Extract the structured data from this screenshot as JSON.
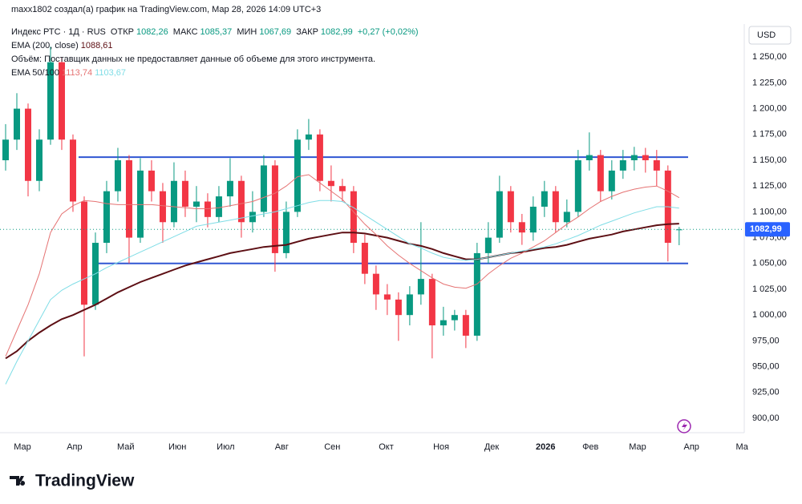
{
  "chart_data": {
    "type": "candlestick",
    "attribution": "maxx1802 создал(а) график на TradingView.com, Мар 28, 2026 14:09 UTC+3",
    "symbol": "Индекс РТС · 1Д · RUS",
    "ohlc_names": [
      "ОТКР",
      "МАКС",
      "МИН",
      "ЗАКР"
    ],
    "ohlc_labels": [
      "1082,26",
      "1085,37",
      "1067,69",
      "1082,99"
    ],
    "change_label": "+0,27 (+0,02%)",
    "volume_note": "Объём: Поставщик данных не предоставляет данные об объеме для этого инструмента.",
    "currency": "USD",
    "brand": "TradingView",
    "last_price_label": "1082,99",
    "up_color": "#089981",
    "down_color": "#f23645",
    "open": [
      1150,
      1170,
      1200,
      1130,
      1170,
      1245,
      1170,
      1110,
      1010,
      1070,
      1120,
      1150,
      1075,
      1140,
      1120,
      1090,
      1130,
      1105,
      1110,
      1095,
      1115,
      1130,
      1090,
      1100,
      1145,
      1060,
      1100,
      1170,
      1175,
      1130,
      1125,
      1120,
      1070,
      1040,
      1020,
      1015,
      1000,
      1020,
      1035,
      990,
      995,
      1000,
      980,
      1060,
      1075,
      1120,
      1090,
      1080,
      1105,
      1120,
      1090,
      1100,
      1150,
      1155,
      1120,
      1140,
      1150,
      1155,
      1150,
      1140,
      1082.26
    ],
    "high": [
      1185,
      1215,
      1205,
      1180,
      1260,
      1250,
      1175,
      1115,
      1080,
      1130,
      1162,
      1155,
      1152,
      1150,
      1128,
      1148,
      1140,
      1125,
      1118,
      1125,
      1152,
      1135,
      1120,
      1155,
      1150,
      1110,
      1180,
      1190,
      1180,
      1145,
      1132,
      1125,
      1078,
      1048,
      1030,
      1022,
      1028,
      1090,
      1040,
      1008,
      1005,
      1005,
      1070,
      1090,
      1135,
      1125,
      1098,
      1115,
      1130,
      1125,
      1112,
      1160,
      1177,
      1160,
      1150,
      1160,
      1163,
      1162,
      1160,
      1145,
      1085.37
    ],
    "low": [
      1140,
      1160,
      1115,
      1120,
      1165,
      1160,
      1100,
      960,
      1005,
      1060,
      1110,
      1050,
      1070,
      1110,
      1070,
      1085,
      1095,
      1090,
      1085,
      1090,
      1105,
      1075,
      1080,
      1095,
      1042,
      1055,
      1095,
      1160,
      1120,
      1110,
      1110,
      1060,
      1030,
      1005,
      1000,
      975,
      990,
      1010,
      958,
      980,
      985,
      968,
      975,
      1050,
      1070,
      1080,
      1068,
      1072,
      1095,
      1080,
      1085,
      1095,
      1140,
      1110,
      1112,
      1132,
      1140,
      1138,
      1125,
      1052,
      1067.69
    ],
    "close": [
      1170,
      1200,
      1130,
      1170,
      1245,
      1170,
      1110,
      1010,
      1070,
      1120,
      1150,
      1075,
      1140,
      1120,
      1090,
      1130,
      1105,
      1110,
      1095,
      1115,
      1130,
      1090,
      1100,
      1145,
      1060,
      1100,
      1170,
      1175,
      1130,
      1125,
      1120,
      1070,
      1040,
      1020,
      1015,
      1000,
      1020,
      1035,
      990,
      995,
      1000,
      980,
      1060,
      1075,
      1120,
      1090,
      1080,
      1105,
      1120,
      1090,
      1100,
      1150,
      1155,
      1120,
      1140,
      1150,
      1155,
      1150,
      1140,
      1070,
      1082.99
    ],
    "series": [
      {
        "name": "EMA (200, close)",
        "color": "#5d0f14",
        "value_label": "1088,61",
        "values": [
          958,
          965,
          975,
          983,
          990,
          996,
          1000,
          1005,
          1010,
          1016,
          1022,
          1027,
          1032,
          1036,
          1040,
          1044,
          1048,
          1051,
          1054,
          1057,
          1060,
          1062,
          1064,
          1066,
          1067,
          1068,
          1071,
          1074,
          1076,
          1078,
          1080,
          1080,
          1079,
          1077,
          1075,
          1072,
          1069,
          1067,
          1064,
          1060,
          1057,
          1054,
          1054,
          1056,
          1058,
          1060,
          1061,
          1063,
          1065,
          1066,
          1068,
          1071,
          1074,
          1076,
          1078,
          1081,
          1083,
          1085,
          1087,
          1088,
          1088.61
        ]
      },
      {
        "name": "EMA 50/100",
        "color": "#e57373",
        "value_label": "1113,74",
        "values": [
          960,
          985,
          1010,
          1040,
          1080,
          1098,
          1106,
          1111,
          1110,
          1108,
          1107,
          1107,
          1107,
          1107,
          1106,
          1105,
          1104,
          1103,
          1103,
          1104,
          1106,
          1108,
          1110,
          1114,
          1118,
          1125,
          1134,
          1136,
          1128,
          1120,
          1112,
          1100,
          1088,
          1078,
          1067,
          1058,
          1050,
          1043,
          1036,
          1030,
          1027,
          1026,
          1030,
          1040,
          1048,
          1055,
          1060,
          1066,
          1072,
          1080,
          1088,
          1095,
          1103,
          1110,
          1115,
          1119,
          1122,
          1124,
          1125,
          1120,
          1113.74
        ]
      },
      {
        "color": "#7fdde6",
        "value_label": "1103,67",
        "values": [
          933,
          955,
          975,
          995,
          1015,
          1024,
          1030,
          1035,
          1040,
          1046,
          1051,
          1056,
          1061,
          1066,
          1071,
          1076,
          1081,
          1086,
          1088,
          1090,
          1092,
          1094,
          1096,
          1098,
          1100,
          1103,
          1106,
          1109,
          1111,
          1111,
          1110,
          1104,
          1097,
          1090,
          1083,
          1076,
          1069,
          1065,
          1060,
          1056,
          1054,
          1053,
          1054,
          1056,
          1058,
          1060,
          1062,
          1064,
          1066,
          1069,
          1073,
          1077,
          1082,
          1087,
          1091,
          1095,
          1099,
          1102,
          1105,
          1105,
          1103.67
        ]
      }
    ],
    "levels": [
      {
        "value": 1153,
        "from": 7,
        "to": 61.3,
        "color": "#3056d3"
      },
      {
        "value": 1050,
        "from": 8.4,
        "to": 61.3,
        "color": "#3056d3"
      }
    ],
    "xlim": [
      0,
      66.3
    ],
    "xticks": [
      {
        "value": 2.0,
        "label": "Мар"
      },
      {
        "value": 6.64,
        "label": "Апр"
      },
      {
        "value": 11.2,
        "label": "Май"
      },
      {
        "value": 15.8,
        "label": "Июн"
      },
      {
        "value": 20.1,
        "label": "Июл"
      },
      {
        "value": 25.1,
        "label": "Авг"
      },
      {
        "value": 29.6,
        "label": "Сен"
      },
      {
        "value": 34.4,
        "label": "Окт"
      },
      {
        "value": 39.3,
        "label": "Ноя"
      },
      {
        "value": 43.8,
        "label": "Дек"
      },
      {
        "value": 48.6,
        "label": "2026"
      },
      {
        "value": 52.6,
        "label": "Фев"
      },
      {
        "value": 56.8,
        "label": "Мар"
      },
      {
        "value": 61.6,
        "label": "Апр"
      },
      {
        "value": 66.1,
        "label": "Ма"
      }
    ],
    "ylim": [
      886,
      1282
    ],
    "yticks": [
      {
        "value": 900,
        "label": "900,00"
      },
      {
        "value": 925,
        "label": "925,00"
      },
      {
        "value": 950,
        "label": "950,00"
      },
      {
        "value": 975,
        "label": "975,00"
      },
      {
        "value": 1000,
        "label": "1 000,00"
      },
      {
        "value": 1025,
        "label": "1 025,00"
      },
      {
        "value": 1050,
        "label": "1 050,00"
      },
      {
        "value": 1075,
        "label": "1 075,00"
      },
      {
        "value": 1100,
        "label": "1 100,00"
      },
      {
        "value": 1125,
        "label": "1 125,00"
      },
      {
        "value": 1150,
        "label": "1 150,00"
      },
      {
        "value": 1175,
        "label": "1 175,00"
      },
      {
        "value": 1200,
        "label": "1 200,00"
      },
      {
        "value": 1225,
        "label": "1 225,00"
      },
      {
        "value": 1250,
        "label": "1 250,00"
      }
    ],
    "grid": false
  }
}
